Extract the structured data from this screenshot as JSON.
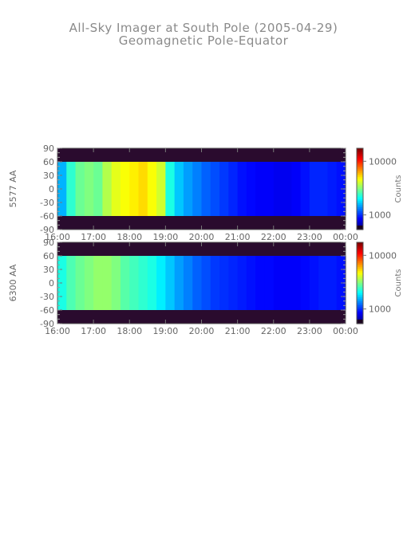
{
  "title": "All-Sky Imager at South Pole (2005-04-29)",
  "subtitle": "Geomagnetic Pole-Equator",
  "chart_data": [
    {
      "type": "heatmap",
      "ylabel": "5577 AA",
      "xticks": [
        "16:00",
        "17:00",
        "18:00",
        "19:00",
        "20:00",
        "21:00",
        "22:00",
        "23:00",
        "00:00"
      ],
      "yticks": [
        90,
        60,
        30,
        0,
        -30,
        -60,
        -90
      ],
      "ylim": [
        -90,
        90
      ],
      "data_lat_range": [
        -60,
        60
      ],
      "colorbar": {
        "label": "Counts",
        "ticks": [
          "10000",
          "1000"
        ]
      },
      "intensity_profile": [
        0.3,
        0.42,
        0.48,
        0.5,
        0.48,
        0.55,
        0.6,
        0.62,
        0.64,
        0.66,
        0.62,
        0.58,
        0.4,
        0.32,
        0.28,
        0.25,
        0.22,
        0.2,
        0.18,
        0.16,
        0.14,
        0.13,
        0.12,
        0.12,
        0.11,
        0.11,
        0.12,
        0.14,
        0.16,
        0.16,
        0.15,
        0.14
      ]
    },
    {
      "type": "heatmap",
      "ylabel": "6300 AA",
      "xticks": [
        "16:00",
        "17:00",
        "18:00",
        "19:00",
        "20:00",
        "21:00",
        "22:00",
        "23:00",
        "00:00"
      ],
      "yticks": [
        90,
        60,
        30,
        0,
        -30,
        -60,
        -90
      ],
      "ylim": [
        -90,
        90
      ],
      "data_lat_range": [
        -60,
        60
      ],
      "colorbar": {
        "label": "Counts",
        "ticks": [
          "10000",
          "1000"
        ]
      },
      "intensity_profile": [
        0.4,
        0.45,
        0.48,
        0.5,
        0.52,
        0.52,
        0.5,
        0.46,
        0.44,
        0.42,
        0.4,
        0.36,
        0.32,
        0.28,
        0.25,
        0.22,
        0.2,
        0.18,
        0.17,
        0.16,
        0.15,
        0.14,
        0.13,
        0.13,
        0.12,
        0.12,
        0.12,
        0.13,
        0.14,
        0.15,
        0.15,
        0.14
      ]
    }
  ]
}
